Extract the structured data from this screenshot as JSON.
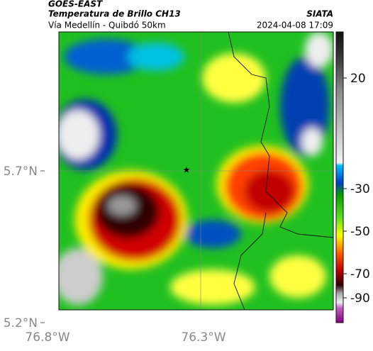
{
  "header": {
    "source": "GOES-EAST",
    "title": "Temperatura de Brillo CH13",
    "route": "Vía Medellín - Quibdó 50km",
    "org": "SIATA",
    "datetime": "2024-04-08 17:09"
  },
  "axes": {
    "lat_labels": [
      "5.7°N",
      "5.2°N"
    ],
    "lon_labels": [
      "76.8°W",
      "76.3°W"
    ]
  },
  "colorbar": {
    "ticks": [
      20,
      -30,
      -50,
      -70,
      -90
    ]
  }
}
